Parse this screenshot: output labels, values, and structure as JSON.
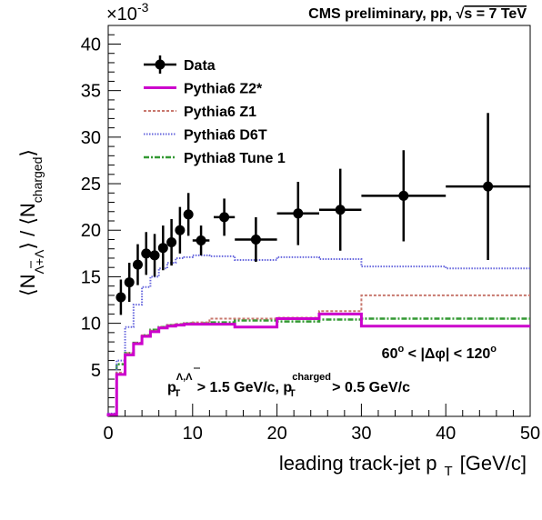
{
  "chart_data": {
    "type": "line",
    "title": "CMS preliminary, pp, √s = 7 TeV",
    "title_parts": {
      "prefix": "CMS preliminary, pp, ",
      "sqrt": "√",
      "s_eq": "s = 7 TeV"
    },
    "xlabel": "leading track-jet p T [GeV/c]",
    "xlabel_parts": {
      "main": "leading track-jet p",
      "sub": "T",
      "unit": "[GeV/c]"
    },
    "ylabel": "⟨N_{Λ+Λ̄}⟩ / ⟨N_charged⟩",
    "ylabel_parts": {
      "open": "⟨N",
      "sub1": "Λ+Λ",
      "mid": "⟩ / ⟨N",
      "sub2": "charged",
      "close": "⟩"
    },
    "y_multiplier": "×10",
    "y_multiplier_exp": "-3",
    "xlim": [
      0,
      50
    ],
    "ylim": [
      0,
      42
    ],
    "x_ticks": [
      "0",
      "10",
      "20",
      "30",
      "40",
      "50"
    ],
    "y_ticks": [
      "5",
      "10",
      "15",
      "20",
      "25",
      "30",
      "35",
      "40"
    ],
    "legend_position": "top-left",
    "annotations": {
      "dphi": {
        "left": "60",
        "deg1": "o",
        "middle": " < |Δφ| < 120",
        "deg2": "o"
      },
      "cuts": {
        "p1": "p",
        "sup1": "Λ,Λ",
        "sub1": "T",
        "mid": " > 1.5 GeV/c, p",
        "sup2": "charged",
        "sub2": "T",
        "end": " > 0.5 GeV/c"
      }
    },
    "series": [
      {
        "name": "Data",
        "style": "points",
        "color": "#000000",
        "points": [
          {
            "x": 1.5,
            "xerr": 0.5,
            "y": 12.8,
            "yerr": 1.9
          },
          {
            "x": 2.5,
            "xerr": 0.5,
            "y": 14.4,
            "yerr": 2.1
          },
          {
            "x": 3.5,
            "xerr": 0.5,
            "y": 16.3,
            "yerr": 2.2
          },
          {
            "x": 4.5,
            "xerr": 0.5,
            "y": 17.5,
            "yerr": 2.3
          },
          {
            "x": 5.5,
            "xerr": 0.5,
            "y": 17.3,
            "yerr": 2.3
          },
          {
            "x": 6.5,
            "xerr": 0.5,
            "y": 18.1,
            "yerr": 2.4
          },
          {
            "x": 7.5,
            "xerr": 0.5,
            "y": 18.7,
            "yerr": 2.5
          },
          {
            "x": 8.5,
            "xerr": 0.5,
            "y": 20.0,
            "yerr": 2.5
          },
          {
            "x": 9.5,
            "xerr": 0.5,
            "y": 21.7,
            "yerr": 2.3
          },
          {
            "x": 11.0,
            "xerr": 1.0,
            "y": 18.9,
            "yerr": 1.6
          },
          {
            "x": 13.75,
            "xerr": 1.25,
            "y": 21.4,
            "yerr": 2.0
          },
          {
            "x": 17.5,
            "xerr": 2.5,
            "y": 19.0,
            "yerr": 2.4
          },
          {
            "x": 22.5,
            "xerr": 2.5,
            "y": 21.8,
            "yerr": 3.4
          },
          {
            "x": 27.5,
            "xerr": 2.5,
            "y": 22.2,
            "yerr": 4.4
          },
          {
            "x": 35.0,
            "xerr": 5.0,
            "y": 23.7,
            "yerr": 4.9
          },
          {
            "x": 45.0,
            "xerr": 5.0,
            "y": 24.7,
            "yerr": 7.9
          }
        ]
      },
      {
        "name": "Pythia6 Z2*",
        "style": "step-solid",
        "color": "#cc00cc",
        "edges": [
          0,
          1,
          2,
          3,
          4,
          5,
          6,
          7,
          8,
          9,
          10,
          12,
          15,
          20,
          25,
          30,
          40,
          50
        ],
        "values": [
          0.2,
          4.5,
          6.6,
          7.8,
          8.6,
          9.1,
          9.5,
          9.7,
          9.8,
          9.9,
          9.9,
          9.9,
          9.6,
          10.5,
          11.0,
          9.7,
          9.7
        ]
      },
      {
        "name": "Pythia6 Z1",
        "style": "step-dashed",
        "color": "#c8786e",
        "edges": [
          0,
          1,
          2,
          3,
          4,
          5,
          6,
          7,
          8,
          9,
          10,
          12,
          15,
          20,
          25,
          30,
          40,
          50
        ],
        "values": [
          0.2,
          4.7,
          6.8,
          7.9,
          8.7,
          9.2,
          9.6,
          9.8,
          9.9,
          10.0,
          10.1,
          10.5,
          10.5,
          10.6,
          11.3,
          13.0,
          13.0
        ]
      },
      {
        "name": "Pythia6 D6T",
        "style": "step-dotted",
        "color": "#6666dd",
        "edges": [
          0,
          1,
          2,
          3,
          4,
          5,
          6,
          7,
          8,
          9,
          10,
          12,
          15,
          20,
          25,
          30,
          40,
          50
        ],
        "values": [
          0.3,
          6.0,
          9.6,
          12.0,
          13.9,
          15.0,
          15.9,
          16.5,
          17.0,
          17.1,
          17.3,
          17.2,
          16.8,
          17.1,
          16.9,
          16.1,
          15.9
        ]
      },
      {
        "name": "Pythia8 Tune 1",
        "style": "step-dashdot",
        "color": "#339933",
        "edges": [
          0,
          1,
          2,
          3,
          4,
          5,
          6,
          7,
          8,
          9,
          10,
          12,
          15,
          20,
          25,
          30,
          40,
          50
        ],
        "values": [
          0.2,
          5.6,
          6.8,
          7.9,
          8.7,
          9.3,
          9.6,
          9.8,
          9.9,
          10.0,
          10.0,
          10.1,
          10.3,
          10.2,
          10.4,
          10.5,
          10.5
        ]
      }
    ]
  }
}
